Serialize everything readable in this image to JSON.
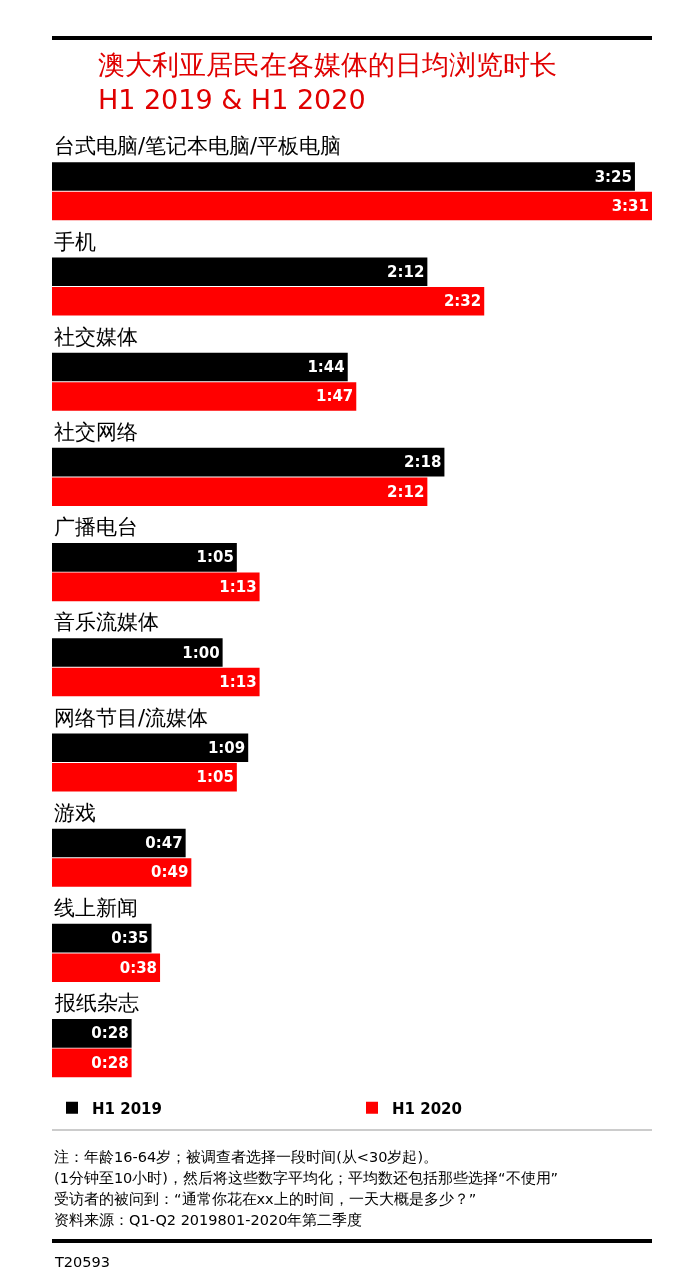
{
  "chart_data": {
    "type": "bar",
    "orientation": "horizontal",
    "title": "澳大利亚居民在各媒体的日均浏览时长",
    "subtitle": "H1 2019 & H1 2020",
    "categories": [
      "台式电脑/笔记本电脑/平板电脑",
      "手机",
      "社交媒体",
      "社交网络",
      "广播电台",
      "音乐流媒体",
      "网络节目/流媒体",
      "游戏",
      "线上新闻",
      "报纸杂志"
    ],
    "series": [
      {
        "name": "H1 2019",
        "color": "#000000",
        "values": [
          205,
          132,
          104,
          138,
          65,
          60,
          69,
          47,
          35,
          28
        ],
        "value_labels": [
          "3:25",
          "2:12",
          "1:44",
          "2:18",
          "1:05",
          "1:00",
          "1:09",
          "0:47",
          "0:35",
          "0:28"
        ]
      },
      {
        "name": "H1 2020",
        "color": "#ff0000",
        "values": [
          211,
          152,
          107,
          132,
          73,
          73,
          65,
          49,
          38,
          28
        ],
        "value_labels": [
          "3:31",
          "2:32",
          "1:47",
          "2:12",
          "1:13",
          "1:13",
          "1:05",
          "0:49",
          "0:38",
          "0:28"
        ]
      }
    ],
    "legend": "bottom",
    "annotations": [
      "注：年龄16-64岁；被调查者选择一段时间(从<30岁起)。",
      "(1分钟至10小时)，然后将这些数字平均化；平均数还包括那些选择“不使用”",
      "受访者的被问到：“通常你花在xx上的时间，一天大概是多少？”",
      "资料来源：Q1-Q2 2019801-2020年第二季度",
      "T20593"
    ]
  }
}
